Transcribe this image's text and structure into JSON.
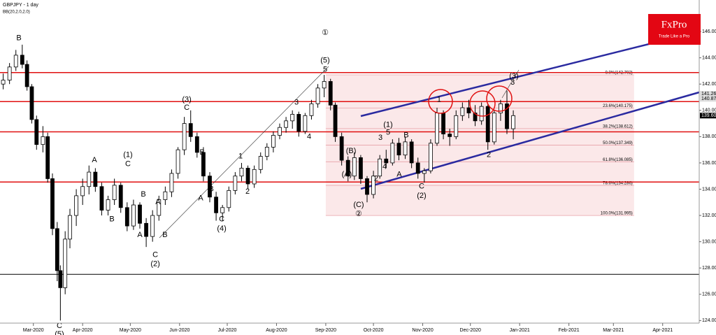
{
  "chart_data": {
    "type": "candlestick",
    "title": "GBPJPY - 1 day",
    "subtitle": "BB(20,2.0,2.0)",
    "logo": {
      "brand": "FxPro",
      "tagline": "Trade Like a Pro"
    },
    "xlim": [
      -21,
      419
    ],
    "xticks": [
      {
        "value": 0,
        "label": "Mar-2020"
      },
      {
        "value": 31,
        "label": "Apr-2020"
      },
      {
        "value": 61,
        "label": "May-2020"
      },
      {
        "value": 92,
        "label": "Jun-2020"
      },
      {
        "value": 122,
        "label": "Jul-2020"
      },
      {
        "value": 153,
        "label": "Aug-2020"
      },
      {
        "value": 184,
        "label": "Sep-2020"
      },
      {
        "value": 214,
        "label": "Oct-2020"
      },
      {
        "value": 245,
        "label": "Nov-2020"
      },
      {
        "value": 275,
        "label": "Dec-2020"
      },
      {
        "value": 306,
        "label": "Jan-2021"
      },
      {
        "value": 337,
        "label": "Feb-2021"
      },
      {
        "value": 365,
        "label": "Mar-2021"
      },
      {
        "value": 396,
        "label": "Apr-2021"
      }
    ],
    "ylim": [
      122.9,
      148.4
    ],
    "yticks": [
      {
        "value": 124,
        "label": "124.000"
      },
      {
        "value": 126,
        "label": "126.000"
      },
      {
        "value": 128,
        "label": "128.000"
      },
      {
        "value": 130,
        "label": "130.000"
      },
      {
        "value": 132,
        "label": "132.000"
      },
      {
        "value": 134,
        "label": "134.000"
      },
      {
        "value": 136,
        "label": "136.000"
      },
      {
        "value": 138,
        "label": "138.000"
      },
      {
        "value": 140,
        "label": "140.000"
      },
      {
        "value": 142,
        "label": "142.000"
      },
      {
        "value": 144,
        "label": "144.000"
      },
      {
        "value": 146,
        "label": "146.000"
      }
    ],
    "candles": {
      "x": [
        -19,
        -15,
        -11,
        -7,
        -4,
        -1,
        2,
        6,
        9,
        12,
        15,
        17,
        20,
        23,
        27,
        31,
        35,
        39,
        43,
        47,
        51,
        55,
        59,
        63,
        67,
        71,
        75,
        79,
        83,
        87,
        91,
        95,
        99,
        103,
        107,
        111,
        115,
        119,
        123,
        127,
        131,
        135,
        139,
        143,
        147,
        151,
        155,
        159,
        163,
        167,
        171,
        175,
        179,
        183,
        187,
        190,
        194,
        198,
        202,
        206,
        210,
        214,
        218,
        222,
        226,
        230,
        234,
        238,
        242,
        246,
        250,
        254,
        258,
        262,
        266,
        270,
        274,
        278,
        282,
        286,
        290,
        294,
        298,
        302
      ],
      "open": [
        142.0,
        142.3,
        143.3,
        144.2,
        143.5,
        141.8,
        139.3,
        137.4,
        138.0,
        134.8,
        131.0,
        127.8,
        126.5,
        130.2,
        132.0,
        133.5,
        134.2,
        135.3,
        134.2,
        132.4,
        133.2,
        134.3,
        132.6,
        131.2,
        132.8,
        131.4,
        130.4,
        132.0,
        133.2,
        133.8,
        135.2,
        137.0,
        139.0,
        138.0,
        136.8,
        135.0,
        133.4,
        132.2,
        132.6,
        133.9,
        135.0,
        135.6,
        134.4,
        135.5,
        136.5,
        137.2,
        138.1,
        138.7,
        139.2,
        139.7,
        138.4,
        139.6,
        140.5,
        141.7,
        142.2,
        140.4,
        138.0,
        136.2,
        135.0,
        136.4,
        134.8,
        133.6,
        135.0,
        136.3,
        136.0,
        137.5,
        136.6,
        137.6,
        136.0,
        135.2,
        135.4,
        137.5,
        139.8,
        138.2,
        138.0,
        139.6,
        140.2,
        139.8,
        139.2,
        140.3,
        137.6,
        139.8,
        140.5,
        138.6
      ],
      "high": [
        142.8,
        143.6,
        144.6,
        145.0,
        143.8,
        142.0,
        139.6,
        138.8,
        138.3,
        135.2,
        131.5,
        128.2,
        130.8,
        132.5,
        134.0,
        134.8,
        135.8,
        135.6,
        134.5,
        133.5,
        134.8,
        134.5,
        133.0,
        133.2,
        133.0,
        131.8,
        132.4,
        133.5,
        134.2,
        135.5,
        137.2,
        139.5,
        140.0,
        138.3,
        137.2,
        135.3,
        133.8,
        132.8,
        134.2,
        135.3,
        136.0,
        135.8,
        135.8,
        136.8,
        137.5,
        138.4,
        139.0,
        139.5,
        140.0,
        139.9,
        139.8,
        140.8,
        142.0,
        142.7,
        142.4,
        140.6,
        138.3,
        136.5,
        136.8,
        136.6,
        135.0,
        135.4,
        136.6,
        137.0,
        137.8,
        137.9,
        138.0,
        137.8,
        136.4,
        135.6,
        137.8,
        140.2,
        140.0,
        138.6,
        140.0,
        140.6,
        140.8,
        140.4,
        140.6,
        140.5,
        140.0,
        140.8,
        141.5,
        140.0
      ],
      "low": [
        141.6,
        142.0,
        143.0,
        143.2,
        141.5,
        139.0,
        137.0,
        136.8,
        134.5,
        130.5,
        127.0,
        124.0,
        126.0,
        129.5,
        131.2,
        132.8,
        133.6,
        133.8,
        132.0,
        132.0,
        132.8,
        132.2,
        130.8,
        130.9,
        131.0,
        129.6,
        130.0,
        131.6,
        132.8,
        133.4,
        134.8,
        136.6,
        137.6,
        136.4,
        134.6,
        133.0,
        131.6,
        131.6,
        132.3,
        133.6,
        134.6,
        134.0,
        134.1,
        135.2,
        136.2,
        136.8,
        137.8,
        138.3,
        138.6,
        138.0,
        138.2,
        139.3,
        140.2,
        141.0,
        140.0,
        137.6,
        135.8,
        134.6,
        134.7,
        134.4,
        133.0,
        133.3,
        134.8,
        135.6,
        135.8,
        136.2,
        136.3,
        135.6,
        134.8,
        134.5,
        135.2,
        137.3,
        137.8,
        137.3,
        137.8,
        139.2,
        139.4,
        138.8,
        138.9,
        137.0,
        137.4,
        139.2,
        138.2,
        137.8
      ],
      "close": [
        142.3,
        143.3,
        144.2,
        143.5,
        141.8,
        139.3,
        137.4,
        138.0,
        134.8,
        131.0,
        127.8,
        126.5,
        130.2,
        132.0,
        133.5,
        134.2,
        135.3,
        134.2,
        132.4,
        133.2,
        134.3,
        132.6,
        131.2,
        132.8,
        131.4,
        130.4,
        132.0,
        133.2,
        133.8,
        135.2,
        137.0,
        139.0,
        138.0,
        136.8,
        135.0,
        133.4,
        132.2,
        132.6,
        133.9,
        135.0,
        135.6,
        134.4,
        135.5,
        136.5,
        137.2,
        138.1,
        138.7,
        139.2,
        139.7,
        138.4,
        139.6,
        140.5,
        141.7,
        142.2,
        140.4,
        138.0,
        136.2,
        135.0,
        136.4,
        134.8,
        133.6,
        135.0,
        136.3,
        136.0,
        137.5,
        136.6,
        137.6,
        136.0,
        135.2,
        135.4,
        137.5,
        139.8,
        138.2,
        138.0,
        139.6,
        140.2,
        139.8,
        139.2,
        140.3,
        137.6,
        139.8,
        140.5,
        138.6,
        139.6
      ]
    },
    "fibonacci": {
      "xlim": [
        184,
        378
      ],
      "levels": [
        {
          "value": 142.702,
          "label": "0.0%(142.702)"
        },
        {
          "value": 140.175,
          "label": "23.6%(140.175)"
        },
        {
          "value": 138.612,
          "label": "38.2%(138.612)"
        },
        {
          "value": 137.349,
          "label": "50.0%(137.349)"
        },
        {
          "value": 136.085,
          "label": "61.8%(136.085)"
        },
        {
          "value": 134.286,
          "label": "78.6%(134.286)"
        },
        {
          "value": 131.995,
          "label": "100.0%(131.995)"
        }
      ]
    },
    "price_tags": [
      {
        "value": 141.267,
        "label": "141.267"
      },
      {
        "value": 140.873,
        "label": "140.873"
      },
      {
        "value": 139.601,
        "label": "139.601"
      }
    ],
    "annotations": [
      {
        "text": "B",
        "x": -9.1,
        "y": 145.5
      },
      {
        "text": "C",
        "x": 16.4,
        "y": 123.6
      },
      {
        "text": "(5)",
        "x": 16.4,
        "y": 122.95
      },
      {
        "text": "A",
        "x": 38.4,
        "y": 136.2
      },
      {
        "text": "(1)",
        "x": 59.5,
        "y": 136.6
      },
      {
        "text": "C",
        "x": 59.5,
        "y": 135.9
      },
      {
        "text": "B",
        "x": 49.4,
        "y": 131.7
      },
      {
        "text": "B",
        "x": 69.2,
        "y": 133.6
      },
      {
        "text": "A",
        "x": 78.4,
        "y": 133.0
      },
      {
        "text": "A",
        "x": 67,
        "y": 130.5
      },
      {
        "text": "B",
        "x": 82.8,
        "y": 130.5
      },
      {
        "text": "C",
        "x": 76.7,
        "y": 129.0
      },
      {
        "text": "(2)",
        "x": 76.7,
        "y": 128.3
      },
      {
        "text": "(3)",
        "x": 96.5,
        "y": 140.8
      },
      {
        "text": "C",
        "x": 96.5,
        "y": 140.2
      },
      {
        "text": "B",
        "x": 106.2,
        "y": 136.8
      },
      {
        "text": "A",
        "x": 105.3,
        "y": 133.3
      },
      {
        "text": "B",
        "x": 111.9,
        "y": 134.0
      },
      {
        "text": "C",
        "x": 118.5,
        "y": 131.7
      },
      {
        "text": "(4)",
        "x": 118.5,
        "y": 131.0
      },
      {
        "text": "1",
        "x": 130.4,
        "y": 136.5
      },
      {
        "text": "2",
        "x": 134.8,
        "y": 133.8
      },
      {
        "text": "3",
        "x": 165.6,
        "y": 140.6
      },
      {
        "text": "4",
        "x": 173.5,
        "y": 138.0
      },
      {
        "text": "①",
        "x": 183.6,
        "y": 145.9
      },
      {
        "text": "(5)",
        "x": 183.6,
        "y": 143.8
      },
      {
        "text": "5",
        "x": 183.6,
        "y": 143.1
      },
      {
        "text": "(B)",
        "x": 199.9,
        "y": 136.9
      },
      {
        "text": "(A)",
        "x": 197.2,
        "y": 135.1
      },
      {
        "text": "2",
        "x": 215.7,
        "y": 134.8
      },
      {
        "text": "(1)",
        "x": 223.2,
        "y": 138.9
      },
      {
        "text": "5",
        "x": 223.2,
        "y": 138.3
      },
      {
        "text": "3",
        "x": 218.4,
        "y": 137.9
      },
      {
        "text": "4",
        "x": 221,
        "y": 135.7
      },
      {
        "text": "B",
        "x": 234.6,
        "y": 138.1
      },
      {
        "text": "A",
        "x": 230.2,
        "y": 135.1
      },
      {
        "text": "C",
        "x": 244.3,
        "y": 134.2
      },
      {
        "text": "(2)",
        "x": 244.3,
        "y": 133.5
      },
      {
        "text": "(C)",
        "x": 204.7,
        "y": 132.8
      },
      {
        "text": "②",
        "x": 204.7,
        "y": 132.1
      },
      {
        "text": "1",
        "x": 255.3,
        "y": 140.8
      },
      {
        "text": "2",
        "x": 286.6,
        "y": 136.6
      },
      {
        "text": "(3)",
        "x": 302.4,
        "y": 142.6
      },
      {
        "text": "3",
        "x": 301.6,
        "y": 142.1
      }
    ]
  }
}
